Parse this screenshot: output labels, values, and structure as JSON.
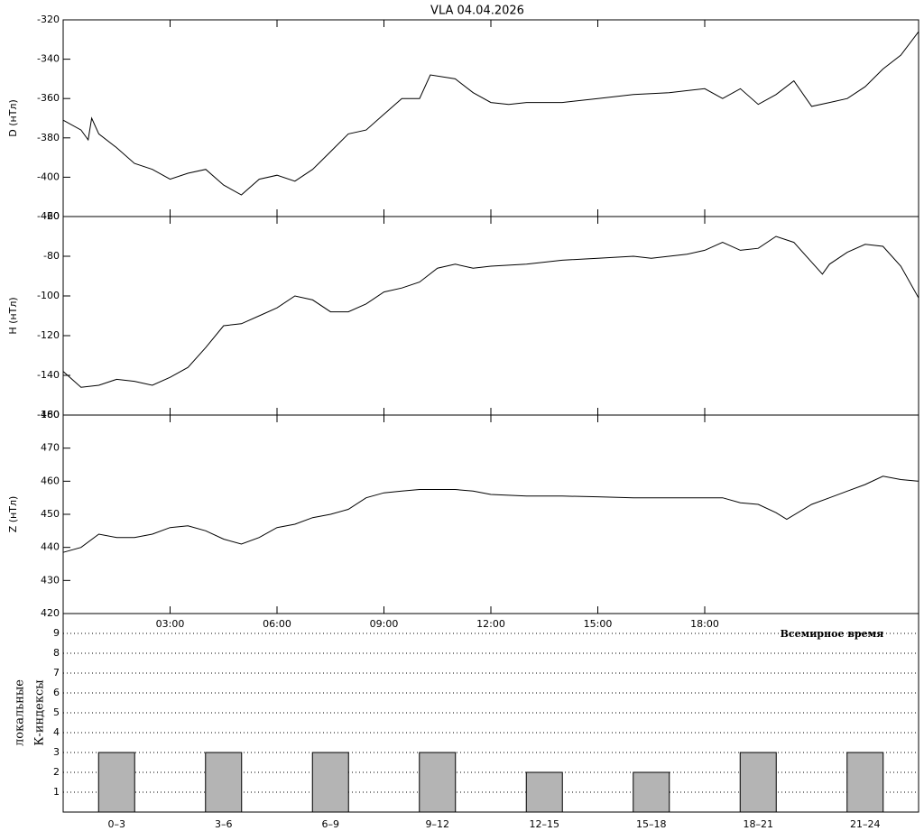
{
  "title": "VLA   04.04.2026",
  "time_axis": {
    "label": "Всемирное время",
    "xlim": [
      0,
      24
    ],
    "xticks": [
      {
        "value": 3,
        "label": "03:00"
      },
      {
        "value": 6,
        "label": "06:00"
      },
      {
        "value": 9,
        "label": "09:00"
      },
      {
        "value": 12,
        "label": "12:00"
      },
      {
        "value": 15,
        "label": "15:00"
      },
      {
        "value": 18,
        "label": "18:00"
      }
    ]
  },
  "chart_data": [
    {
      "type": "line",
      "ylabel": "D (нТл)",
      "ylim": [
        -420,
        -320
      ],
      "yticks": [
        -320,
        -340,
        -360,
        -380,
        -400,
        -420
      ],
      "color": "#000000",
      "x": [
        0,
        0.5,
        0.7,
        0.8,
        1,
        1.5,
        2,
        2.5,
        3,
        3.5,
        4,
        4.5,
        5,
        5.5,
        6,
        6.5,
        7,
        7.5,
        8,
        8.5,
        9,
        9.5,
        10,
        10.3,
        11,
        11.5,
        12,
        12.5,
        13,
        14,
        15,
        16,
        17,
        18,
        18.5,
        19,
        19.5,
        20,
        20.5,
        21,
        21.5,
        22,
        22.5,
        23,
        23.5,
        24
      ],
      "values": [
        -371,
        -376,
        -381,
        -370,
        -378,
        -385,
        -393,
        -396,
        -401,
        -398,
        -396,
        -404,
        -409,
        -401,
        -399,
        -402,
        -396,
        -387,
        -378,
        -376,
        -368,
        -360,
        -360,
        -348,
        -350,
        -357,
        -362,
        -363,
        -362,
        -362,
        -360,
        -358,
        -357,
        -355,
        -360,
        -355,
        -363,
        -358,
        -351,
        -364,
        -362,
        -360,
        -354,
        -345,
        -338,
        -326
      ]
    },
    {
      "type": "line",
      "ylabel": "H (нТл)",
      "ylim": [
        -160,
        -60
      ],
      "yticks": [
        -60,
        -80,
        -100,
        -120,
        -140,
        -160
      ],
      "color": "#000000",
      "x": [
        0,
        0.5,
        1,
        1.5,
        2,
        2.5,
        3,
        3.5,
        4,
        4.5,
        5,
        5.5,
        6,
        6.5,
        7,
        7.5,
        8,
        8.5,
        9,
        9.5,
        10,
        10.5,
        11,
        11.5,
        12,
        13,
        14,
        15,
        16,
        16.5,
        17,
        17.5,
        18,
        18.5,
        19,
        19.5,
        20,
        20.5,
        21,
        21.3,
        21.5,
        22,
        22.5,
        23,
        23.5,
        24
      ],
      "values": [
        -138,
        -146,
        -145,
        -142,
        -143,
        -145,
        -141,
        -136,
        -126,
        -115,
        -114,
        -110,
        -106,
        -100,
        -102,
        -108,
        -108,
        -104,
        -98,
        -96,
        -93,
        -86,
        -84,
        -86,
        -85,
        -84,
        -82,
        -81,
        -80,
        -81,
        -80,
        -79,
        -77,
        -73,
        -77,
        -76,
        -70,
        -73,
        -83,
        -89,
        -84,
        -78,
        -74,
        -75,
        -85,
        -101
      ]
    },
    {
      "type": "line",
      "ylabel": "Z (нТл)",
      "ylim": [
        420,
        480
      ],
      "yticks": [
        420,
        430,
        440,
        450,
        460,
        470,
        480
      ],
      "color": "#000000",
      "x": [
        0,
        0.5,
        1,
        1.5,
        2,
        2.5,
        3,
        3.5,
        4,
        4.5,
        5,
        5.5,
        6,
        6.5,
        7,
        7.5,
        8,
        8.5,
        9,
        9.5,
        10,
        11,
        11.5,
        12,
        13,
        14,
        15,
        16,
        17,
        18,
        18.5,
        19,
        19.5,
        20,
        20.3,
        21,
        21.5,
        22,
        22.5,
        23,
        23.5,
        24
      ],
      "values": [
        438.5,
        440,
        444,
        443,
        443,
        444,
        446,
        446.5,
        445,
        442.5,
        441,
        443,
        446,
        447,
        449,
        450,
        451.5,
        455,
        456.5,
        457,
        457.5,
        457.5,
        457,
        456,
        455.5,
        455.5,
        455.3,
        455,
        455,
        455,
        455,
        453.5,
        453,
        450.5,
        448.5,
        453,
        455,
        457,
        459,
        461.5,
        460.5,
        460
      ]
    },
    {
      "type": "bar",
      "ylabel": [
        "локальные",
        "К-индексы"
      ],
      "ylim": [
        0,
        10
      ],
      "yticks": [
        1,
        2,
        3,
        4,
        5,
        6,
        7,
        8,
        9
      ],
      "color": "#b4b4b4",
      "grid": true,
      "categories": [
        "0–3",
        "3–6",
        "6–9",
        "9–12",
        "12–15",
        "15–18",
        "18–21",
        "21–24"
      ],
      "values": [
        3,
        3,
        3,
        3,
        2,
        2,
        3,
        3
      ]
    }
  ]
}
